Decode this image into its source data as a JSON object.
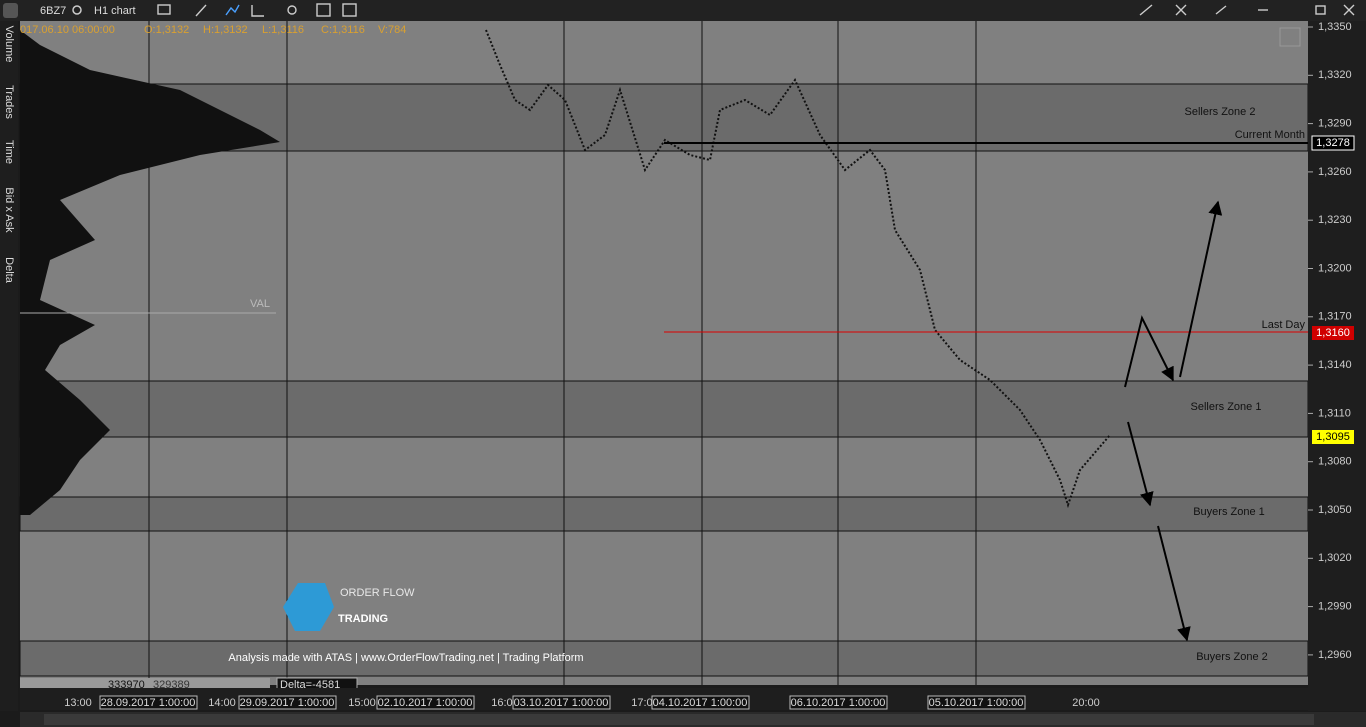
{
  "toolbar": {
    "symbol": "6BZ7",
    "timeframe": "H1 chart"
  },
  "side_tabs": [
    "Volume",
    "Trades",
    "Time",
    "Bid x Ask",
    "Delta"
  ],
  "info_bar": [
    "017.06.10 06:00:00",
    "O:1,3132",
    "H:1,3132",
    "L:1,3116",
    "C:1,3116",
    "V:784"
  ],
  "price_axis": [
    "1,3350",
    "1,3320",
    "1,3290",
    "1,3260",
    "1,3230",
    "1,3200",
    "1,3170",
    "1,3140",
    "1,3110",
    "1,3080",
    "1,3050",
    "1,3020",
    "1,2990",
    "1,2960"
  ],
  "price_markers": {
    "current_month": {
      "label": "Current Month",
      "price": "1,3278"
    },
    "last_day": {
      "label": "Last Day",
      "price": "1,3160"
    },
    "last_price": "1,3095"
  },
  "profile": {
    "val_label": "VAL",
    "stats": [
      "333970",
      "329389"
    ],
    "delta": "Delta=-4581"
  },
  "zones": [
    "Sellers Zone 2",
    "Sellers Zone 1",
    "Buyers Zone 1",
    "Buyers Zone 2"
  ],
  "time_axis": {
    "hours": [
      "13:00",
      "14:00",
      "15:00",
      "16:00",
      "17:00",
      "20:00"
    ],
    "dates": [
      "28.09.2017 1:00:00",
      "29.09.2017 1:00:00",
      "02.10.2017 1:00:00",
      "03.10.2017 1:00:00",
      "04.10.2017 1:00:00",
      "06.10.2017 1:00:00",
      "05.10.2017 1:00:00"
    ]
  },
  "watermark": {
    "line1": "ORDER FLOW",
    "line2": "TRADING",
    "caption": "Analysis made with ATAS | www.OrderFlowTrading.net | Trading Platform"
  }
}
